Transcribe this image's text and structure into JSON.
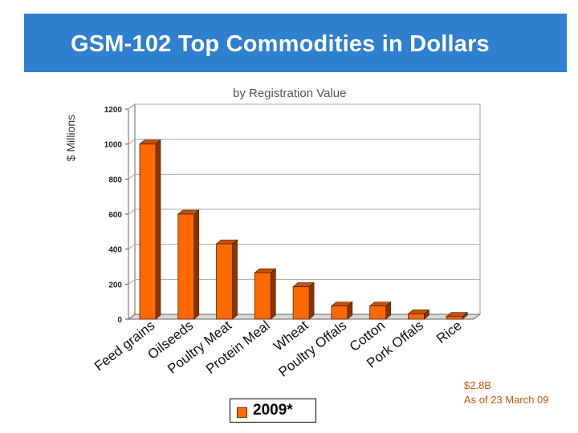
{
  "header": {
    "title": "GSM-102  Top Commodities in Dollars"
  },
  "notes": {
    "total": "$2.8B",
    "as_of": "As of 23 March 09"
  },
  "colors": {
    "banner": "#2f7fcf",
    "bar_front": "#ff6a00",
    "bar_side": "#8a3500",
    "bar_top": "#c65100",
    "note": "#c8570a"
  },
  "chart_data": {
    "type": "bar",
    "title": "by Registration Value",
    "xlabel": "",
    "ylabel": "$ Millions",
    "ylim": [
      0,
      1200
    ],
    "yticks": [
      0,
      200,
      400,
      600,
      800,
      1000,
      1200
    ],
    "categories": [
      "Feed grains",
      "Oilseeds",
      "Poultry Meat",
      "Protein Meal",
      "Wheat",
      "Poultry Offals",
      "Cotton",
      "Pork Offals",
      "Rice"
    ],
    "series": [
      {
        "name": "2009*",
        "values": [
          1000,
          600,
          430,
          265,
          185,
          75,
          75,
          30,
          15
        ]
      }
    ],
    "legend": "bottom-center",
    "grid": true
  }
}
